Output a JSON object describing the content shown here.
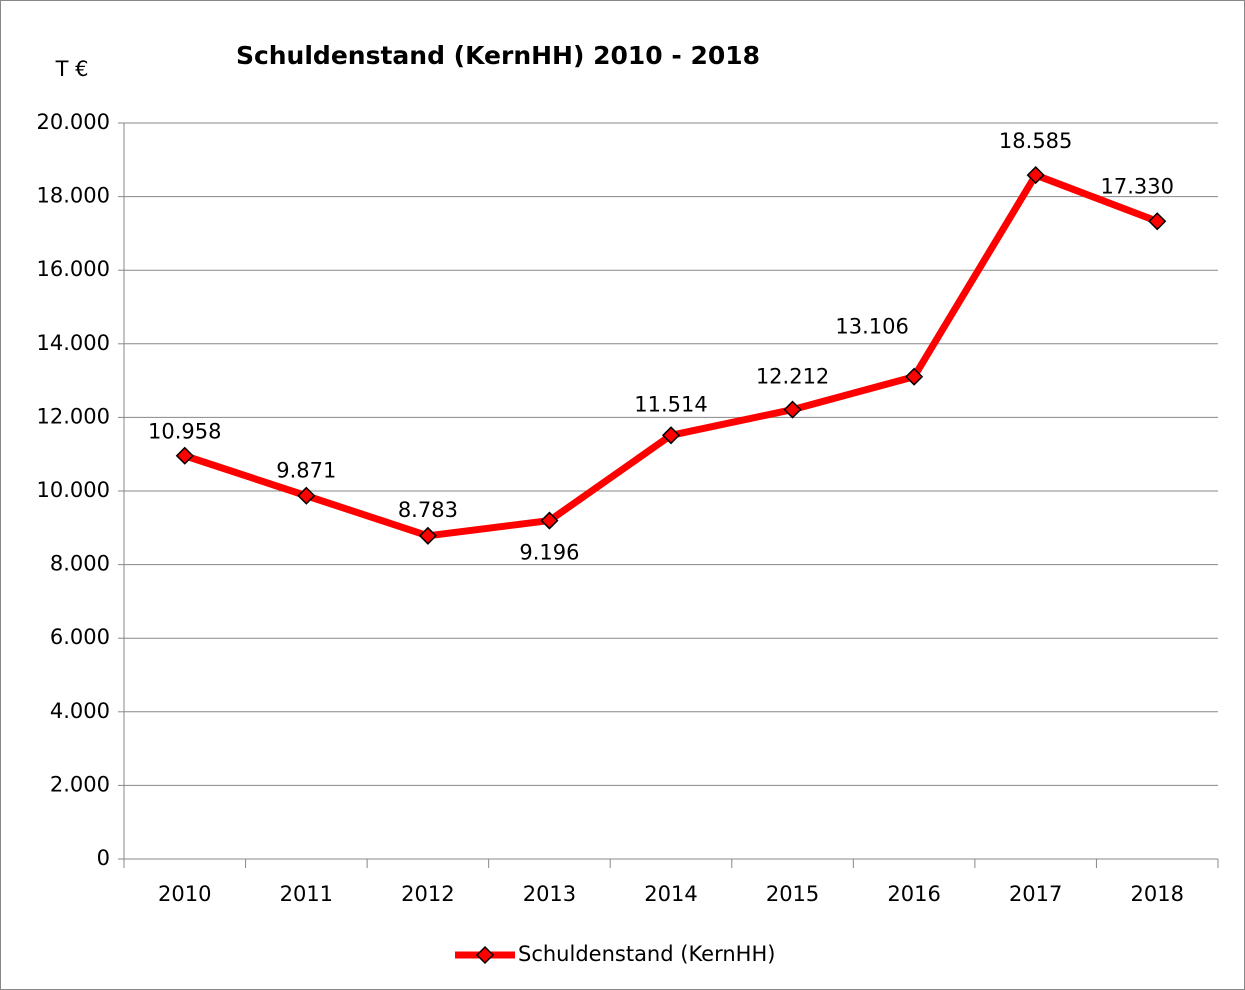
{
  "chart_data": {
    "type": "line",
    "title": "Schuldenstand (KernHH) 2010 - 2018",
    "y_label": "T €",
    "categories": [
      "2010",
      "2011",
      "2012",
      "2013",
      "2014",
      "2015",
      "2016",
      "2017",
      "2018"
    ],
    "series": [
      {
        "name": "Schuldenstand (KernHH)",
        "color": "#ff0000",
        "values": [
          10958,
          9871,
          8783,
          9196,
          11514,
          12212,
          13106,
          18585,
          17330
        ],
        "value_labels": [
          "10.958",
          "9.871",
          "8.783",
          "9.196",
          "11.514",
          "12.212",
          "13.106",
          "18.585",
          "17.330"
        ]
      }
    ],
    "ylim": [
      0,
      20000
    ],
    "yticks": [
      0,
      {
        "value": 2000,
        "label": "2.000"
      },
      {
        "value": 4000,
        "label": "4.000"
      },
      {
        "value": 6000,
        "label": "6.000"
      },
      {
        "value": 8000,
        "label": "8.000"
      },
      {
        "value": 10000,
        "label": "10.000"
      },
      {
        "value": 12000,
        "label": "12.000"
      },
      {
        "value": 14000,
        "label": "14.000"
      },
      {
        "value": 16000,
        "label": "16.000"
      },
      {
        "value": 18000,
        "label": "18.000"
      },
      {
        "value": 20000,
        "label": "20.000"
      }
    ],
    "grid": true,
    "legend": "bottom"
  }
}
